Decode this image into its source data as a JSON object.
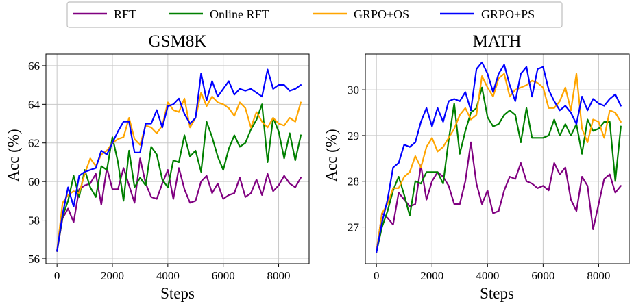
{
  "legend": [
    {
      "name": "RFT",
      "color": "#800080"
    },
    {
      "name": "Online RFT",
      "color": "#008000"
    },
    {
      "name": "GRPO+OS",
      "color": "#FFA500"
    },
    {
      "name": "GRPO+PS",
      "color": "#0000FF"
    }
  ],
  "chart_data": [
    {
      "type": "line",
      "title": "GSM8K",
      "xlabel": "Steps",
      "ylabel": "Acc (%)",
      "xlim": [
        -400,
        9100
      ],
      "ylim": [
        55.75,
        66.6
      ],
      "xticks": [
        0,
        2000,
        4000,
        6000,
        8000
      ],
      "yticks": [
        56,
        58,
        60,
        62,
        64,
        66
      ],
      "grid": true,
      "x": [
        0,
        200,
        400,
        600,
        800,
        1000,
        1200,
        1400,
        1600,
        1800,
        2000,
        2200,
        2400,
        2600,
        2800,
        3000,
        3200,
        3400,
        3600,
        3800,
        4000,
        4200,
        4400,
        4600,
        4800,
        5000,
        5200,
        5400,
        5600,
        5800,
        6000,
        6200,
        6400,
        6600,
        6800,
        7000,
        7200,
        7400,
        7600,
        7800,
        8000,
        8200,
        8400,
        8600,
        8800
      ],
      "series": [
        {
          "name": "RFT",
          "color": "#800080",
          "values": [
            56.4,
            58.1,
            58.6,
            57.9,
            59.6,
            59.8,
            59.9,
            60.4,
            58.8,
            60.7,
            59.6,
            59.6,
            60.7,
            59.8,
            58.9,
            61.2,
            59.9,
            59.2,
            59.1,
            59.9,
            60.6,
            59.1,
            60.7,
            59.6,
            58.9,
            59.0,
            60.0,
            60.3,
            59.4,
            59.9,
            59.1,
            59.3,
            59.4,
            60.2,
            59.2,
            59.4,
            60.1,
            59.3,
            60.4,
            59.5,
            59.8,
            60.3,
            59.9,
            59.7,
            60.2
          ]
        },
        {
          "name": "Online RFT",
          "color": "#008000",
          "values": [
            56.4,
            58.2,
            59.0,
            60.3,
            59.2,
            60.6,
            59.7,
            59.2,
            60.8,
            60.6,
            62.3,
            61.0,
            59.0,
            61.6,
            59.7,
            60.2,
            59.8,
            61.8,
            61.4,
            60.1,
            59.7,
            61.1,
            61.0,
            62.4,
            61.3,
            61.6,
            60.5,
            63.1,
            62.3,
            61.3,
            60.6,
            61.7,
            62.4,
            61.8,
            62.0,
            62.7,
            63.2,
            64.0,
            61.0,
            63.3,
            62.6,
            61.2,
            62.5,
            61.1,
            62.4
          ]
        },
        {
          "name": "GRPO+OS",
          "color": "#FFA500",
          "values": [
            56.4,
            58.9,
            59.3,
            59.5,
            59.4,
            60.4,
            61.2,
            60.8,
            61.4,
            61.6,
            62.0,
            62.2,
            62.3,
            63.3,
            62.2,
            61.9,
            62.9,
            62.8,
            62.5,
            62.9,
            64.1,
            63.7,
            63.6,
            64.3,
            62.8,
            63.3,
            64.6,
            63.9,
            64.4,
            64.1,
            64.0,
            63.8,
            63.4,
            64.1,
            63.8,
            62.8,
            63.6,
            63.1,
            62.8,
            63.3,
            63.0,
            62.9,
            63.3,
            63.1,
            64.1
          ]
        },
        {
          "name": "GRPO+PS",
          "color": "#0000FF",
          "values": [
            56.4,
            58.3,
            59.7,
            58.7,
            60.3,
            60.5,
            60.6,
            60.7,
            61.6,
            61.4,
            62.0,
            62.6,
            63.1,
            63.1,
            61.5,
            61.5,
            63.0,
            63.0,
            63.7,
            62.8,
            63.9,
            64.0,
            64.3,
            63.5,
            63.0,
            63.3,
            65.6,
            64.2,
            65.2,
            64.4,
            64.8,
            65.2,
            64.5,
            64.8,
            64.7,
            64.8,
            64.6,
            64.4,
            65.8,
            64.8,
            65.0,
            65.0,
            64.7,
            64.8,
            65.0
          ]
        }
      ]
    },
    {
      "type": "line",
      "title": "MATH",
      "xlabel": "Steps",
      "ylabel": "Acc (%)",
      "xlim": [
        -400,
        9100
      ],
      "ylim": [
        26.2,
        30.78
      ],
      "xticks": [
        0,
        2000,
        4000,
        6000,
        8000
      ],
      "yticks": [
        27,
        28,
        29,
        30
      ],
      "grid": true,
      "x": [
        0,
        200,
        400,
        600,
        800,
        1000,
        1200,
        1400,
        1600,
        1800,
        2000,
        2200,
        2400,
        2600,
        2800,
        3000,
        3200,
        3400,
        3600,
        3800,
        4000,
        4200,
        4400,
        4600,
        4800,
        5000,
        5200,
        5400,
        5600,
        5800,
        6000,
        6200,
        6400,
        6600,
        6800,
        7000,
        7200,
        7400,
        7600,
        7800,
        8000,
        8200,
        8400,
        8600,
        8800
      ],
      "series": [
        {
          "name": "RFT",
          "color": "#800080",
          "values": [
            26.45,
            27.3,
            27.2,
            27.05,
            27.75,
            27.6,
            27.45,
            27.5,
            28.35,
            27.6,
            28.0,
            28.2,
            28.1,
            27.9,
            27.5,
            27.5,
            28.0,
            28.85,
            27.95,
            27.5,
            27.8,
            27.3,
            27.35,
            27.8,
            28.1,
            28.05,
            28.4,
            28.0,
            27.95,
            27.85,
            27.9,
            27.8,
            28.4,
            28.15,
            28.3,
            27.6,
            27.35,
            28.1,
            27.9,
            26.95,
            27.5,
            28.05,
            28.15,
            27.75,
            27.9
          ]
        },
        {
          "name": "Online RFT",
          "color": "#008000",
          "values": [
            26.45,
            27.0,
            27.35,
            27.8,
            28.1,
            27.7,
            27.25,
            28.0,
            27.95,
            28.2,
            28.2,
            28.2,
            27.95,
            28.9,
            29.7,
            28.6,
            29.1,
            29.5,
            29.6,
            30.05,
            29.4,
            29.2,
            29.25,
            29.45,
            29.55,
            29.45,
            28.85,
            29.6,
            28.95,
            28.95,
            28.95,
            29.0,
            29.35,
            29.0,
            29.25,
            29.0,
            29.25,
            28.6,
            29.35,
            29.1,
            29.15,
            29.3,
            29.3,
            28.0,
            29.2
          ]
        },
        {
          "name": "GRPO+OS",
          "color": "#FFA500",
          "values": [
            26.45,
            27.3,
            27.5,
            27.85,
            27.85,
            28.1,
            28.2,
            28.55,
            28.3,
            28.75,
            28.95,
            28.65,
            28.75,
            28.95,
            29.15,
            29.45,
            29.6,
            29.35,
            29.45,
            30.3,
            30.05,
            29.85,
            30.25,
            30.35,
            29.85,
            30.0,
            30.05,
            30.1,
            30.2,
            30.15,
            30.05,
            29.6,
            29.6,
            29.75,
            30.05,
            29.55,
            30.35,
            29.15,
            28.85,
            29.35,
            29.3,
            28.95,
            29.55,
            29.5,
            29.3
          ]
        },
        {
          "name": "GRPO+PS",
          "color": "#0000FF",
          "values": [
            26.45,
            27.1,
            27.6,
            28.3,
            28.4,
            28.8,
            28.75,
            28.85,
            29.3,
            29.6,
            29.2,
            29.6,
            29.3,
            29.75,
            29.8,
            29.75,
            29.95,
            29.55,
            30.45,
            30.6,
            30.35,
            29.95,
            30.35,
            30.55,
            30.1,
            29.75,
            30.35,
            30.5,
            29.85,
            30.45,
            30.5,
            30.0,
            29.75,
            29.55,
            29.65,
            29.5,
            29.25,
            29.85,
            29.55,
            29.8,
            29.7,
            29.65,
            29.8,
            29.9,
            29.65
          ]
        }
      ]
    }
  ]
}
